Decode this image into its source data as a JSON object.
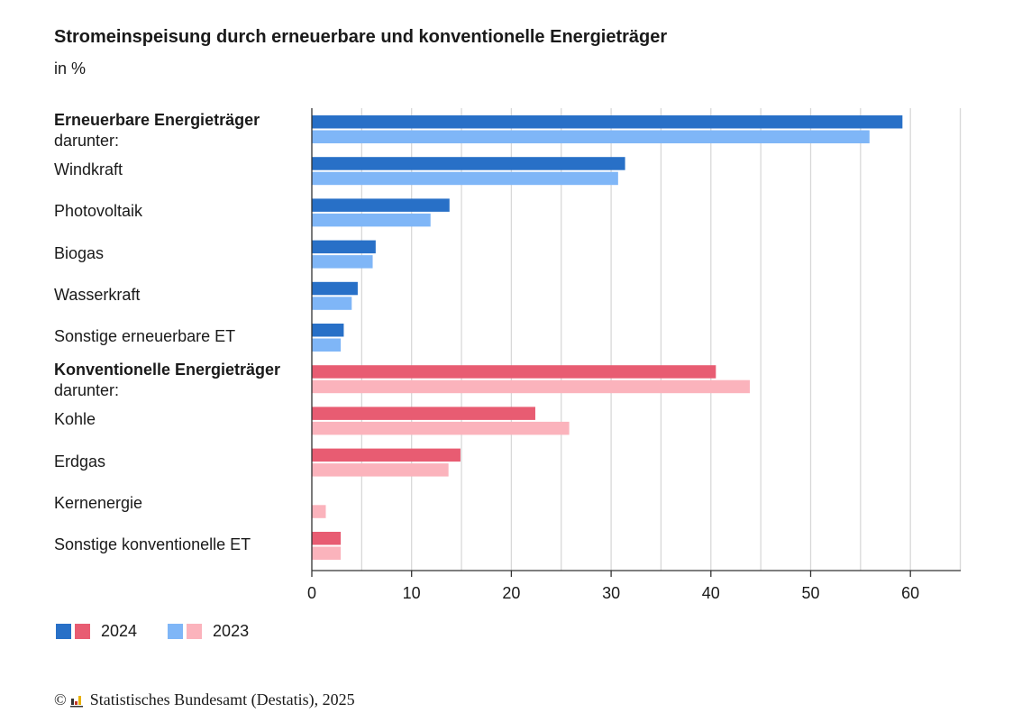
{
  "header": {
    "title": "Stromeinspeisung durch erneuerbare und konventionelle Energieträger",
    "subtitle": "in %"
  },
  "legend": {
    "label_2024": "2024",
    "label_2023": "2023"
  },
  "footer": {
    "copyright_symbol": "©",
    "source": "Statistisches Bundesamt (Destatis), 2025"
  },
  "colors": {
    "renewable_2024": "#2870c7",
    "renewable_2023": "#7fb6f7",
    "conventional_2024": "#e85c72",
    "conventional_2023": "#fbb3bc",
    "grid": "#d8d8d8",
    "axis": "#333333"
  },
  "chart_data": {
    "type": "bar",
    "orientation": "horizontal",
    "title": "Stromeinspeisung durch erneuerbare und konventionelle Energieträger",
    "subtitle": "in %",
    "xlim": [
      0,
      65
    ],
    "xticks": [
      0,
      10,
      20,
      30,
      40,
      50,
      60
    ],
    "grid": "vertical lines every 5",
    "legend_position": "bottom-left",
    "categories": [
      {
        "label": "Erneuerbare Energieträger",
        "sublabel": "darunter:",
        "bold": true,
        "group": "renewable"
      },
      {
        "label": "Windkraft",
        "sublabel": "",
        "bold": false,
        "group": "renewable"
      },
      {
        "label": "Photovoltaik",
        "sublabel": "",
        "bold": false,
        "group": "renewable"
      },
      {
        "label": "Biogas",
        "sublabel": "",
        "bold": false,
        "group": "renewable"
      },
      {
        "label": "Wasserkraft",
        "sublabel": "",
        "bold": false,
        "group": "renewable"
      },
      {
        "label": "Sonstige erneuerbare ET",
        "sublabel": "",
        "bold": false,
        "group": "renewable"
      },
      {
        "label": "Konventionelle Energieträger",
        "sublabel": "darunter:",
        "bold": true,
        "group": "conventional"
      },
      {
        "label": "Kohle",
        "sublabel": "",
        "bold": false,
        "group": "conventional"
      },
      {
        "label": "Erdgas",
        "sublabel": "",
        "bold": false,
        "group": "conventional"
      },
      {
        "label": "Kernenergie",
        "sublabel": "",
        "bold": false,
        "group": "conventional"
      },
      {
        "label": "Sonstige konventionelle ET",
        "sublabel": "",
        "bold": false,
        "group": "conventional"
      }
    ],
    "series": [
      {
        "name": "2024",
        "values": [
          59.2,
          31.4,
          13.8,
          6.4,
          4.6,
          3.2,
          40.5,
          22.4,
          14.9,
          0,
          2.9
        ]
      },
      {
        "name": "2023",
        "values": [
          55.9,
          30.7,
          11.9,
          6.1,
          4.0,
          2.9,
          43.9,
          25.8,
          13.7,
          1.4,
          2.9
        ]
      }
    ]
  }
}
